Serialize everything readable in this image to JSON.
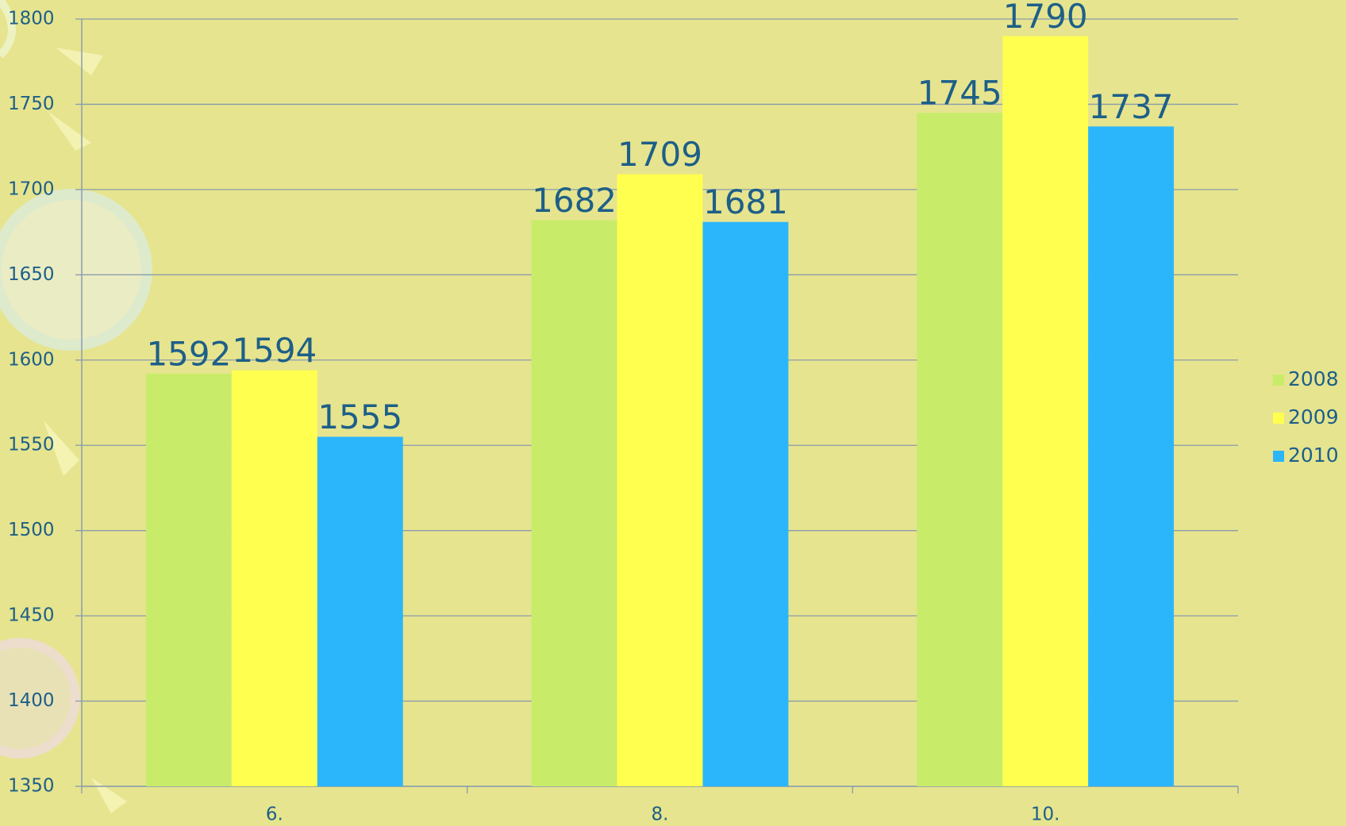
{
  "chart_data": {
    "type": "bar",
    "categories": [
      "6.",
      "8.",
      "10."
    ],
    "series": [
      {
        "name": "2008",
        "color": "#c8ec6a",
        "values": [
          1592,
          1682,
          1745
        ]
      },
      {
        "name": "2009",
        "color": "#ffff50",
        "values": [
          1594,
          1709,
          1790
        ]
      },
      {
        "name": "2010",
        "color": "#2bb6fb",
        "values": [
          1555,
          1681,
          1737
        ]
      }
    ],
    "ylim": [
      1350,
      1800
    ],
    "yticks": [
      1350,
      1400,
      1450,
      1500,
      1550,
      1600,
      1650,
      1700,
      1750,
      1800
    ],
    "grid": true,
    "legend": "right"
  }
}
